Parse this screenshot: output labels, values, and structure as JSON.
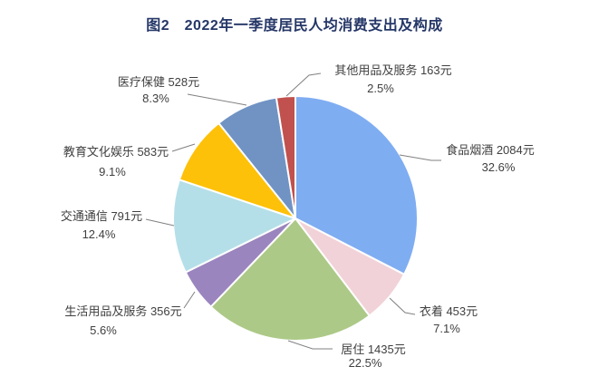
{
  "title": "图2　2022年一季度居民人均消费支出及构成",
  "chart_data": {
    "type": "pie",
    "title": "图2　2022年一季度居民人均消费支出及构成",
    "unit": "元",
    "legend_position": "none",
    "labels_style": "outside-with-leader-lines",
    "slices": [
      {
        "key": "food-tobacco-alcohol",
        "name": "食品烟酒",
        "value": 2084,
        "pct": 32.6,
        "label": "食品烟酒 2084元",
        "pct_label": "32.6%",
        "color": "#7FADF2"
      },
      {
        "key": "clothing",
        "name": "衣着",
        "value": 453,
        "pct": 7.1,
        "label": "衣着 453元",
        "pct_label": "7.1%",
        "color": "#F1D2D8"
      },
      {
        "key": "housing",
        "name": "居住",
        "value": 1435,
        "pct": 22.5,
        "label": "居住 1435元",
        "pct_label": "22.5%",
        "color": "#ACC987"
      },
      {
        "key": "household-goods-services",
        "name": "生活用品及服务",
        "value": 356,
        "pct": 5.6,
        "label": "生活用品及服务 356元",
        "pct_label": "5.6%",
        "color": "#9B85BE"
      },
      {
        "key": "transport-communication",
        "name": "交通通信",
        "value": 791,
        "pct": 12.4,
        "label": "交通通信 791元",
        "pct_label": "12.4%",
        "color": "#B5DFE8"
      },
      {
        "key": "education-culture-entertainment",
        "name": "教育文化娱乐",
        "value": 583,
        "pct": 9.1,
        "label": "教育文化娱乐 583元",
        "pct_label": "9.1%",
        "color": "#FEC109"
      },
      {
        "key": "healthcare",
        "name": "医疗保健",
        "value": 528,
        "pct": 8.3,
        "label": "医疗保健 528元",
        "pct_label": "8.3%",
        "color": "#7093C4"
      },
      {
        "key": "other-goods-services",
        "name": "其他用品及服务",
        "value": 163,
        "pct": 2.5,
        "label": "其他用品及服务 163元",
        "pct_label": "2.5%",
        "color": "#C1514E"
      }
    ]
  }
}
